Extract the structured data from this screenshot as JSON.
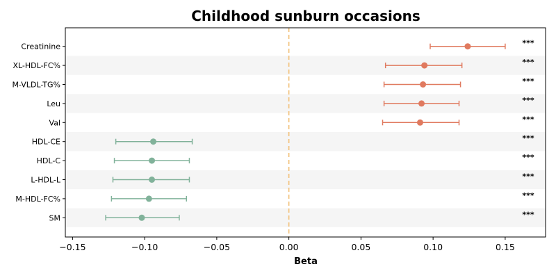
{
  "chart_data": {
    "type": "scatter",
    "subtype": "forest-plot",
    "title": "Childhood sunburn occasions",
    "xlabel": "Beta",
    "ylabel": "",
    "xlim": [
      -0.155,
      0.178
    ],
    "x_ticks": [
      -0.15,
      -0.1,
      -0.05,
      0.0,
      0.05,
      0.1,
      0.15
    ],
    "x_tick_labels": [
      "−0.15",
      "−0.10",
      "−0.05",
      "0.00",
      "0.05",
      "0.10",
      "0.15"
    ],
    "reference_line": 0.0,
    "grid": false,
    "alternating_row_shading": true,
    "colors": {
      "positive": "#E07A5F",
      "negative": "#81B29A",
      "reference_line": "#F2C078",
      "row_shade": "#F5F5F5"
    },
    "points": [
      {
        "label": "Creatinine",
        "beta": 0.124,
        "ci_low": 0.098,
        "ci_high": 0.15,
        "significance": "***"
      },
      {
        "label": "XL-HDL-FC%",
        "beta": 0.094,
        "ci_low": 0.067,
        "ci_high": 0.12,
        "significance": "***"
      },
      {
        "label": "M-VLDL-TG%",
        "beta": 0.093,
        "ci_low": 0.066,
        "ci_high": 0.119,
        "significance": "***"
      },
      {
        "label": "Leu",
        "beta": 0.092,
        "ci_low": 0.066,
        "ci_high": 0.118,
        "significance": "***"
      },
      {
        "label": "Val",
        "beta": 0.091,
        "ci_low": 0.065,
        "ci_high": 0.118,
        "significance": "***"
      },
      {
        "label": "HDL-CE",
        "beta": -0.094,
        "ci_low": -0.12,
        "ci_high": -0.067,
        "significance": "***"
      },
      {
        "label": "HDL-C",
        "beta": -0.095,
        "ci_low": -0.121,
        "ci_high": -0.069,
        "significance": "***"
      },
      {
        "label": "L-HDL-L",
        "beta": -0.095,
        "ci_low": -0.122,
        "ci_high": -0.069,
        "significance": "***"
      },
      {
        "label": "M-HDL-FC%",
        "beta": -0.097,
        "ci_low": -0.123,
        "ci_high": -0.071,
        "significance": "***"
      },
      {
        "label": "SM",
        "beta": -0.102,
        "ci_low": -0.127,
        "ci_high": -0.076,
        "significance": "***"
      }
    ]
  }
}
